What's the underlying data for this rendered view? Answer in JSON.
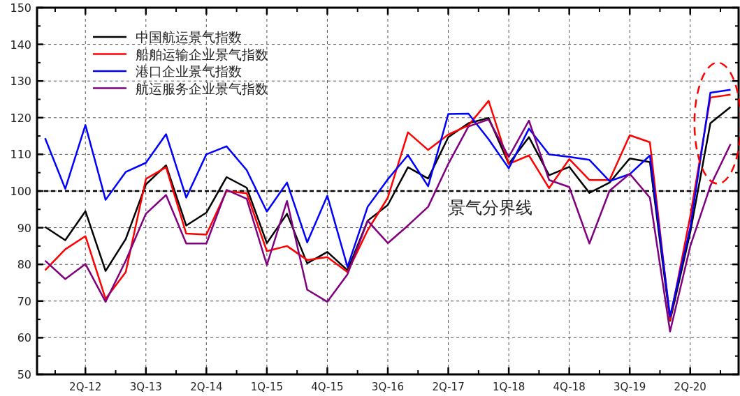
{
  "chart_data": {
    "type": "line",
    "categories": [
      null,
      null,
      "2Q-12",
      null,
      null,
      "3Q-13",
      null,
      null,
      "2Q-14",
      null,
      null,
      "1Q-15",
      null,
      null,
      "4Q-15",
      null,
      null,
      "3Q-16",
      null,
      null,
      "2Q-17",
      null,
      null,
      "1Q-18",
      null,
      null,
      "4Q-18",
      null,
      null,
      "3Q-19",
      null,
      null,
      "2Q-20",
      null,
      null
    ],
    "series": [
      {
        "name": "中国航运景气指数",
        "color": "#000000",
        "values": [
          90.2,
          86.6,
          94.5,
          78.2,
          86.9,
          101.8,
          107,
          90.6,
          94.1,
          103.8,
          100.9,
          85.8,
          93.8,
          80.3,
          83.4,
          78.4,
          91.9,
          96.2,
          106.5,
          103.4,
          114.7,
          118.5,
          119.9,
          107.4,
          114.7,
          104.3,
          106.6,
          99.5,
          102.3,
          108.9,
          107.9,
          64.6,
          88.7,
          118.5,
          122.9
        ]
      },
      {
        "name": "船舶运输企业景气指数",
        "color": "#ff0000",
        "values": [
          78.4,
          84.1,
          87.7,
          70.6,
          77.9,
          103.3,
          106.5,
          88.4,
          88.1,
          100,
          99.4,
          83.6,
          85,
          81.2,
          82,
          77.9,
          89.3,
          98.2,
          116,
          111.2,
          115.4,
          117.9,
          124.6,
          107.4,
          109.7,
          100.8,
          108.7,
          103,
          103,
          115.2,
          113.3,
          64.9,
          93.1,
          125.5,
          126.3
        ]
      },
      {
        "name": "港口企业景气指数",
        "color": "#0000ff",
        "values": [
          114.4,
          100.6,
          118,
          97.6,
          105.2,
          107.7,
          115.5,
          98.2,
          110,
          112.2,
          105.7,
          94.4,
          102.3,
          86,
          98.7,
          79.3,
          95.7,
          103.2,
          109.8,
          101.3,
          121,
          121.1,
          114.1,
          106.2,
          117,
          110,
          109.3,
          108.5,
          102.7,
          104.6,
          109.7,
          65.8,
          90,
          126.8,
          127.6
        ]
      },
      {
        "name": "航运服务企业景气指数",
        "color": "#800080",
        "values": [
          81,
          76,
          80.1,
          69.8,
          81,
          93.8,
          98.9,
          85.7,
          85.7,
          100.3,
          97.9,
          79.8,
          97.3,
          73.1,
          69.8,
          77.3,
          91.9,
          85.8,
          90.6,
          95.7,
          107.4,
          117.6,
          119.5,
          109.3,
          119.2,
          103,
          101.1,
          85.7,
          100.1,
          104.7,
          98.2,
          61.7,
          84.9,
          101.4,
          112.8
        ]
      }
    ],
    "ylim": [
      50,
      150
    ],
    "yticks": [
      50,
      60,
      70,
      80,
      90,
      100,
      110,
      120,
      130,
      140,
      150
    ],
    "grid": true,
    "legend": "top left",
    "marker": "none",
    "line_style": "solid",
    "ref_lines": [
      {
        "axis": "y",
        "value": 100,
        "label": "景气分界线",
        "color": "#000000",
        "line_style": "dashed"
      }
    ]
  }
}
